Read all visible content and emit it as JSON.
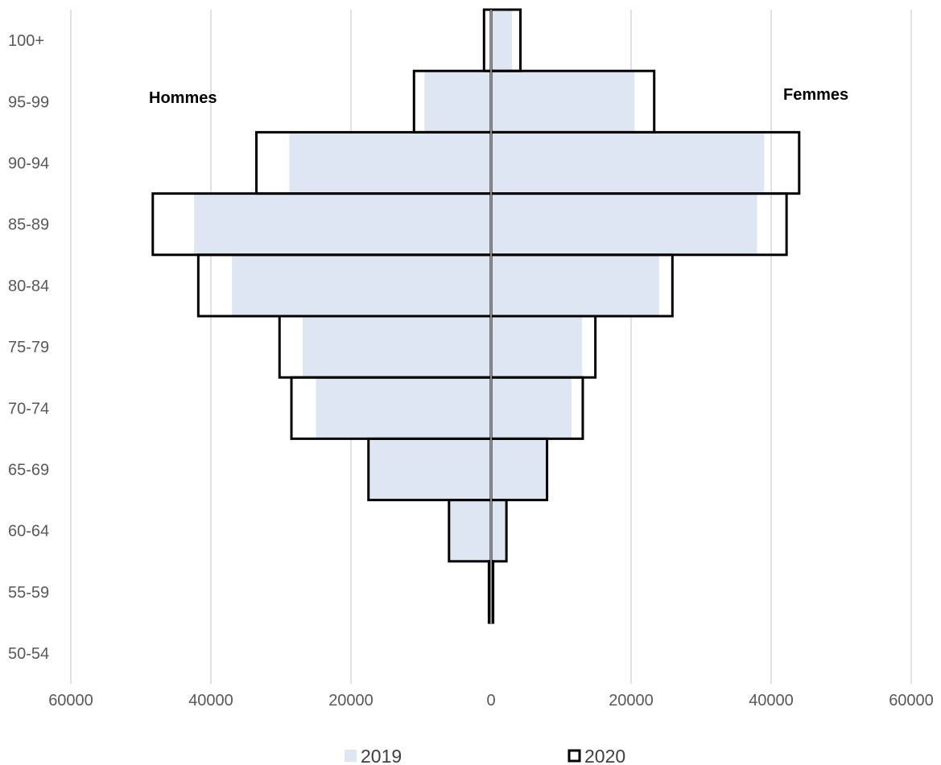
{
  "chart_data": {
    "type": "bar",
    "orientation": "horizontal",
    "subtype": "population-pyramid",
    "categories": [
      "100+",
      "95-99",
      "90-94",
      "85-89",
      "80-84",
      "75-79",
      "70-74",
      "65-69",
      "60-64",
      "55-59",
      "50-54"
    ],
    "side_labels": {
      "left": "Hommes",
      "right": "Femmes"
    },
    "x_tick_labels": [
      "60000",
      "40000",
      "20000",
      "0",
      "20000",
      "40000",
      "60000"
    ],
    "xlim": [
      -60000,
      60000
    ],
    "grid": true,
    "legend_position": "bottom",
    "series": [
      {
        "name": "2019",
        "style": "filled",
        "color": "#dde6f2",
        "hommes": [
          0,
          9500,
          28800,
          42400,
          37000,
          26900,
          25000,
          17500,
          6000,
          0,
          0
        ],
        "femmes": [
          3000,
          20500,
          39000,
          38000,
          24000,
          13000,
          11500,
          8000,
          2200,
          0,
          0
        ]
      },
      {
        "name": "2020",
        "style": "outline",
        "color": "#000000",
        "hommes": [
          1000,
          11000,
          33500,
          48300,
          41800,
          30200,
          28500,
          17500,
          6000,
          300,
          0
        ],
        "femmes": [
          4200,
          23300,
          44000,
          42200,
          25900,
          14900,
          13100,
          8000,
          2200,
          300,
          0
        ]
      }
    ]
  }
}
